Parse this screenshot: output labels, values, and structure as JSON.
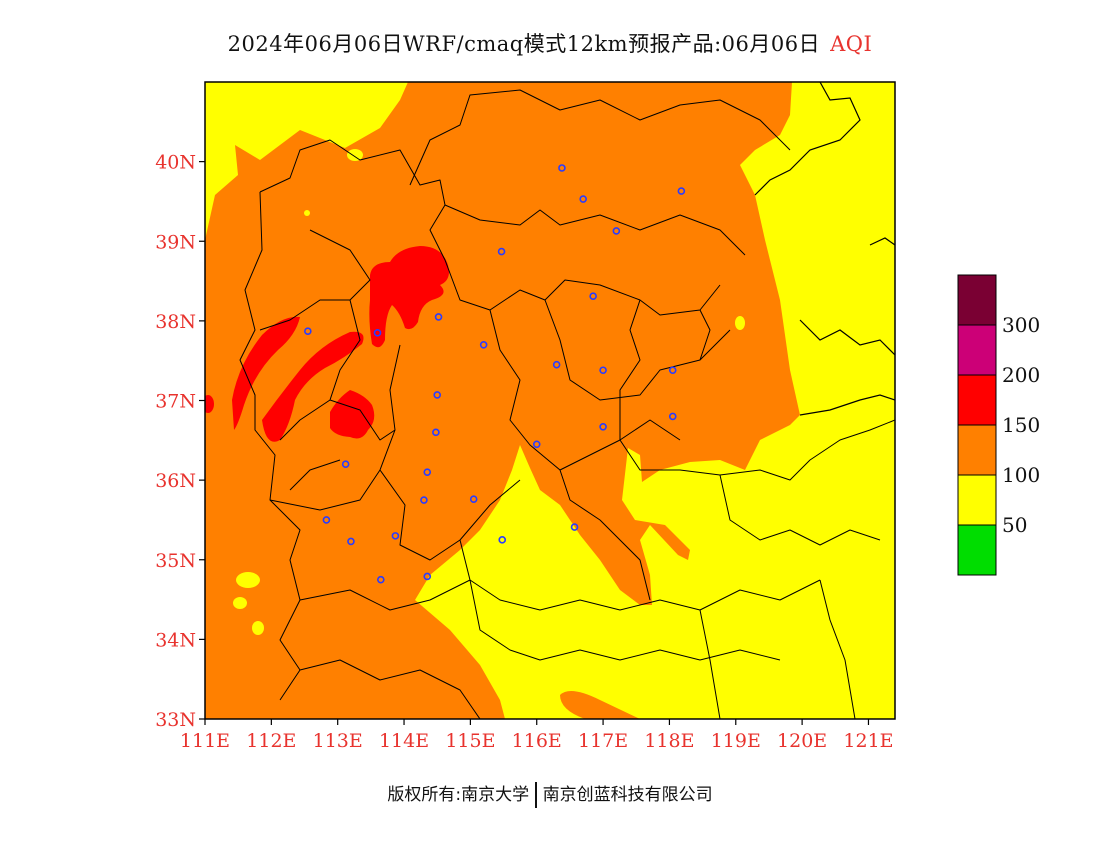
{
  "title": {
    "main": "2024年06月06日WRF/cmaq模式12km预报产品:06月06日",
    "tag": "AQI"
  },
  "axes": {
    "lat_labels": [
      "40N",
      "39N",
      "38N",
      "37N",
      "36N",
      "35N",
      "34N",
      "33N"
    ],
    "lon_labels": [
      "111E",
      "112E",
      "113E",
      "114E",
      "115E",
      "116E",
      "117E",
      "118E",
      "119E",
      "120E",
      "121E"
    ],
    "lon_range": [
      111,
      121.4
    ],
    "lat_range": [
      33,
      41
    ]
  },
  "legend": {
    "colors": [
      "#7a0033",
      "#cc0077",
      "#ff0000",
      "#ff8000",
      "#ffff00",
      "#00dd00"
    ],
    "labels": [
      "300",
      "200",
      "150",
      "100",
      "50"
    ]
  },
  "footer": {
    "left": "版权所有:南京大学",
    "right": "南京创蓝科技有限公司"
  },
  "stations": [
    [
      116.38,
      39.92
    ],
    [
      116.7,
      39.53
    ],
    [
      117.2,
      39.13
    ],
    [
      118.18,
      39.63
    ],
    [
      115.47,
      38.87
    ],
    [
      116.85,
      38.31
    ],
    [
      114.52,
      38.05
    ],
    [
      112.55,
      37.87
    ],
    [
      113.6,
      37.85
    ],
    [
      115.2,
      37.7
    ],
    [
      116.3,
      37.45
    ],
    [
      117.0,
      37.38
    ],
    [
      118.05,
      37.38
    ],
    [
      114.5,
      37.07
    ],
    [
      114.48,
      36.6
    ],
    [
      116.0,
      36.45
    ],
    [
      117.0,
      36.67
    ],
    [
      118.05,
      36.8
    ],
    [
      113.12,
      36.2
    ],
    [
      114.35,
      36.1
    ],
    [
      114.3,
      35.75
    ],
    [
      115.05,
      35.76
    ],
    [
      112.83,
      35.5
    ],
    [
      113.2,
      35.23
    ],
    [
      113.87,
      35.3
    ],
    [
      115.48,
      35.25
    ],
    [
      116.57,
      35.41
    ],
    [
      114.35,
      34.79
    ],
    [
      113.65,
      34.75
    ]
  ]
}
